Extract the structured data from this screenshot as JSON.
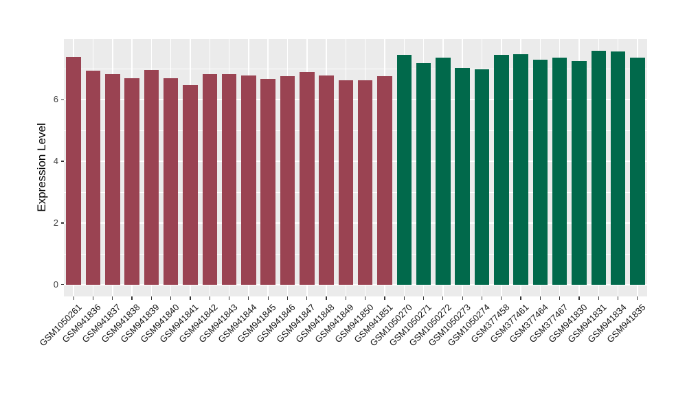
{
  "figure": {
    "background_color": "#FFFFFF",
    "panel_color": "#EBEBEB",
    "grid_color": "#FFFFFF",
    "tick_mark_color": "#333333",
    "y_tick_text_color": "#404040",
    "x_tick_text_color": "#111111",
    "y_title_color": "#000000"
  },
  "chart_data": {
    "type": "bar",
    "title": "",
    "xlabel": "",
    "ylabel": "Expression Level",
    "ylim": [
      -0.38,
      7.96
    ],
    "yticks_major": [
      0,
      2,
      4,
      6
    ],
    "yticks_minor": [
      1,
      3,
      5,
      7
    ],
    "grid": "white major+minor horizontal lines and vertical line at each category center on gray panel (ggplot style)",
    "legend_position": "none",
    "bar_width_fraction": 0.76,
    "series": [
      {
        "name": "left-group-maroon",
        "color": "#9A4352",
        "categories": [
          "GSM1050261",
          "GSM941836",
          "GSM941837",
          "GSM941838",
          "GSM941839",
          "GSM941840",
          "GSM941841",
          "GSM941842",
          "GSM941843",
          "GSM941844",
          "GSM941845",
          "GSM941846",
          "GSM941847",
          "GSM941848",
          "GSM941849",
          "GSM941850",
          "GSM941851"
        ],
        "values": [
          7.38,
          6.94,
          6.83,
          6.7,
          6.96,
          6.7,
          6.46,
          6.82,
          6.83,
          6.78,
          6.67,
          6.76,
          6.9,
          6.78,
          6.62,
          6.63,
          6.76
        ]
      },
      {
        "name": "right-group-green",
        "color": "#01694B",
        "categories": [
          "GSM1050270",
          "GSM1050271",
          "GSM1050272",
          "GSM1050273",
          "GSM1050274",
          "GSM377458",
          "GSM377461",
          "GSM377464",
          "GSM377467",
          "GSM941830",
          "GSM941831",
          "GSM941834",
          "GSM941835"
        ],
        "values": [
          7.44,
          7.18,
          7.37,
          7.02,
          6.99,
          7.45,
          7.48,
          7.29,
          7.37,
          7.25,
          7.59,
          7.56,
          7.35
        ]
      }
    ]
  }
}
